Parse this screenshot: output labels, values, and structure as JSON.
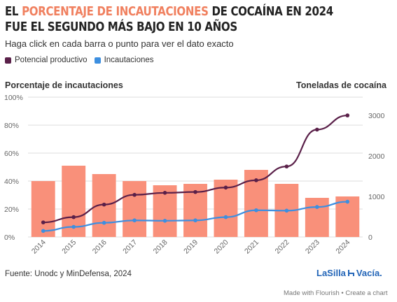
{
  "title": {
    "prefix": "El",
    "highlight": "porcentaje de incautaciones",
    "suffix": "de cocaína en 2024 fue el segundo más bajo en 10 años"
  },
  "subtitle": "Haga click en cada barra o punto para ver el dato exacto",
  "legend": [
    {
      "label": "Potencial productivo",
      "color": "#5a2049"
    },
    {
      "label": "Incautaciones",
      "color": "#3d8fe0"
    }
  ],
  "axis_titles": {
    "left": "Porcentaje de incautaciones",
    "right": "Toneladas de cocaína"
  },
  "source": "Fuente: Unodc y MinDefensa, 2024",
  "brand": {
    "part1": "LaSilla",
    "part2": "Vacía."
  },
  "footer": {
    "made_with": "Made with Flourish",
    "separator": "•",
    "create": "Create a chart"
  },
  "colors": {
    "bars": "#f9907a",
    "potencial": "#5a2049",
    "incautaciones": "#3d8fe0",
    "highlight": "#f0805f",
    "brand": "#2466b8"
  },
  "chart_data": {
    "type": "bar",
    "categories": [
      "2014",
      "2015",
      "2016",
      "2017",
      "2018",
      "2019",
      "2020",
      "2021",
      "2022",
      "2023",
      "2024"
    ],
    "series": [
      {
        "name": "Porcentaje de incautaciones",
        "type": "bar",
        "axis": "left",
        "values": [
          40,
          51,
          45,
          40,
          37,
          38,
          41,
          48,
          38,
          28,
          29
        ]
      },
      {
        "name": "Potencial productivo",
        "type": "line",
        "axis": "right",
        "values": [
          360,
          490,
          800,
          1040,
          1090,
          1110,
          1220,
          1400,
          1740,
          2650,
          3000
        ]
      },
      {
        "name": "Incautaciones",
        "type": "line",
        "axis": "right",
        "values": [
          150,
          250,
          350,
          410,
          400,
          410,
          490,
          660,
          650,
          740,
          870
        ]
      }
    ],
    "left_axis": {
      "label": "Porcentaje de incautaciones",
      "range": [
        0,
        100
      ],
      "ticks": [
        "0%",
        "20%",
        "40%",
        "60%",
        "80%",
        "100%"
      ]
    },
    "right_axis": {
      "label": "Toneladas de cocaína",
      "range": [
        0,
        3450
      ],
      "ticks": [
        "0",
        "1000",
        "2000",
        "3000"
      ]
    },
    "grid": true,
    "legend_position": "top-left"
  }
}
